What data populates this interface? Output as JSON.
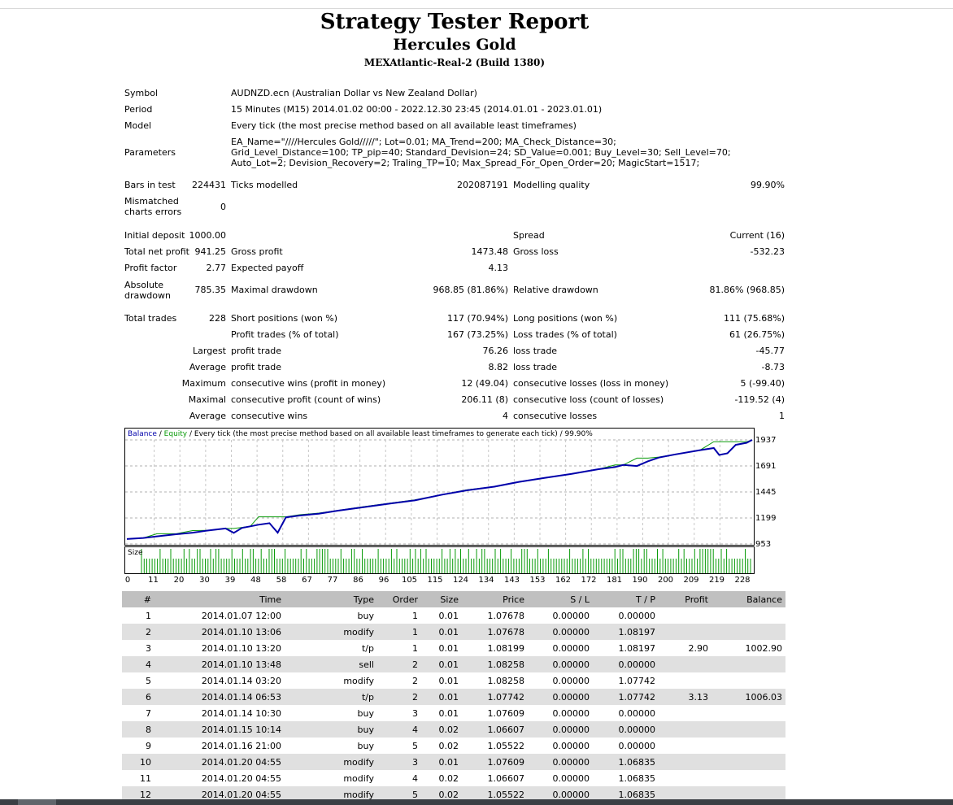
{
  "header": {
    "title": "Strategy Tester Report",
    "ea_name": "Hercules Gold",
    "server": "MEXAtlantic-Real-2 (Build 1380)"
  },
  "info": {
    "symbol_label": "Symbol",
    "symbol_value": "AUDNZD.ecn (Australian Dollar vs New Zealand Dollar)",
    "period_label": "Period",
    "period_value": "15 Minutes (M15) 2014.01.02 00:00 - 2022.12.30 23:45 (2014.01.01 - 2023.01.01)",
    "model_label": "Model",
    "model_value": "Every tick (the most precise method based on all available least timeframes)",
    "parameters_label": "Parameters",
    "parameters_value": "EA_Name=\"////Hercules Gold/////\"; Lot=0.01; MA_Trend=200; MA_Check_Distance=30; Grid_Level_Distance=100; TP_pip=40; Standard_Devision=24; SD_Value=0.001; Buy_Level=30; Sell_Level=70; Auto_Lot=2; Devision_Recovery=2; Traling_TP=10; Max_Spread_For_Open_Order=20; MagicStart=1517;"
  },
  "stats": {
    "bars_label": "Bars in test",
    "bars_value": "224431",
    "ticks_label": "Ticks modelled",
    "ticks_value": "202087191",
    "quality_label": "Modelling quality",
    "quality_value": "99.90%",
    "mismatch_label": "Mismatched charts errors",
    "mismatch_value": "0",
    "deposit_label": "Initial deposit",
    "deposit_value": "1000.00",
    "spread_label": "Spread",
    "spread_value": "Current (16)",
    "netprofit_label": "Total net profit",
    "netprofit_value": "941.25",
    "grossprofit_label": "Gross profit",
    "grossprofit_value": "1473.48",
    "grossloss_label": "Gross loss",
    "grossloss_value": "-532.23",
    "pf_label": "Profit factor",
    "pf_value": "2.77",
    "payoff_label": "Expected payoff",
    "payoff_value": "4.13",
    "absdd_label": "Absolute drawdown",
    "absdd_value": "785.35",
    "maxdd_label": "Maximal drawdown",
    "maxdd_value": "968.85 (81.86%)",
    "reldd_label": "Relative drawdown",
    "reldd_value": "81.86% (968.85)",
    "trades_label": "Total trades",
    "trades_value": "228",
    "short_label": "Short positions (won %)",
    "short_value": "117 (70.94%)",
    "long_label": "Long positions (won %)",
    "long_value": "111 (75.68%)",
    "profittrades_label": "Profit trades (% of total)",
    "profittrades_value": "167 (73.25%)",
    "losstrades_label": "Loss trades (% of total)",
    "losstrades_value": "61 (26.75%)",
    "largest_label": "Largest",
    "lp_label": "profit trade",
    "lp_value": "76.26",
    "ll_label": "loss trade",
    "ll_value": "-45.77",
    "average_label": "Average",
    "ap_label": "profit trade",
    "ap_value": "8.82",
    "al_label": "loss trade",
    "al_value": "-8.73",
    "maximum_label": "Maximum",
    "mcw_label": "consecutive wins (profit in money)",
    "mcw_value": "12 (49.04)",
    "mcl_label": "consecutive losses (loss in money)",
    "mcl_value": "5 (-99.40)",
    "maximal_label": "Maximal",
    "mcp_label": "consecutive profit (count of wins)",
    "mcp_value": "206.11 (8)",
    "mclo_label": "consecutive loss (count of losses)",
    "mclo_value": "-119.52 (4)",
    "average2_label": "Average",
    "acw_label": "consecutive wins",
    "acw_value": "4",
    "acl_label": "consecutive losses",
    "acl_value": "1"
  },
  "chart_data": {
    "type": "line",
    "legend_balance": "Balance",
    "legend_sep1": " / ",
    "legend_equity": "Equity",
    "legend_rest": " / Every tick (the most precise method based on all available least timeframes to generate each tick) / 99.90%",
    "size_label": "Size",
    "ylim": [
      953,
      1937
    ],
    "y_ticks": [
      "1937",
      "1691",
      "1445",
      "1199",
      "953"
    ],
    "x_ticks": [
      "0",
      "11",
      "20",
      "30",
      "39",
      "48",
      "58",
      "67",
      "77",
      "86",
      "96",
      "105",
      "115",
      "124",
      "134",
      "143",
      "153",
      "162",
      "172",
      "181",
      "190",
      "200",
      "209",
      "219",
      "228"
    ],
    "xlim": [
      0,
      228
    ],
    "colors": {
      "balance": "#0000aa",
      "equity": "#0a9b0a",
      "size": "#0a9b0a"
    },
    "series": [
      {
        "name": "Balance",
        "x": [
          0,
          6,
          11,
          18,
          24,
          30,
          36,
          39,
          42,
          45,
          48,
          52,
          55,
          58,
          63,
          70,
          77,
          86,
          96,
          105,
          115,
          124,
          134,
          143,
          153,
          162,
          172,
          178,
          181,
          186,
          190,
          194,
          200,
          209,
          214,
          216,
          219,
          222,
          226,
          228
        ],
        "y": [
          1000,
          1010,
          1025,
          1045,
          1060,
          1082,
          1100,
          1058,
          1105,
          1120,
          1135,
          1150,
          1060,
          1205,
          1222,
          1240,
          1268,
          1300,
          1335,
          1365,
          1420,
          1460,
          1495,
          1540,
          1580,
          1615,
          1660,
          1680,
          1700,
          1690,
          1735,
          1770,
          1800,
          1840,
          1860,
          1795,
          1810,
          1890,
          1910,
          1937
        ]
      },
      {
        "name": "Equity",
        "x": [
          0,
          6,
          11,
          18,
          24,
          30,
          36,
          39,
          42,
          45,
          48,
          52,
          55,
          58,
          63,
          70,
          77,
          86,
          96,
          105,
          115,
          124,
          134,
          143,
          153,
          162,
          172,
          178,
          181,
          186,
          190,
          194,
          200,
          209,
          214,
          216,
          219,
          222,
          226,
          228
        ],
        "y": [
          1000,
          1010,
          1050,
          1050,
          1080,
          1082,
          1100,
          1100,
          1110,
          1120,
          1210,
          1210,
          1210,
          1210,
          1230,
          1245,
          1270,
          1305,
          1340,
          1370,
          1420,
          1465,
          1495,
          1540,
          1580,
          1615,
          1660,
          1700,
          1700,
          1765,
          1765,
          1775,
          1800,
          1840,
          1920,
          1920,
          1920,
          1920,
          1920,
          1937
        ]
      }
    ],
    "size_values": [
      1,
      0.6,
      0.6,
      0.6,
      0.6,
      0.6,
      0.6,
      1,
      0.6,
      0.6,
      0.6,
      1,
      0.6,
      0.6,
      0.6,
      0.6,
      1,
      0.6,
      1,
      0.6,
      0.6,
      1,
      1,
      0.6,
      0.6,
      0.6,
      1,
      0.6,
      1,
      1,
      0.6,
      0.6,
      0.6,
      0.6,
      1,
      0.6,
      0.6,
      0.6,
      1,
      0.6,
      0.6,
      1,
      1,
      0.6,
      0.6,
      1,
      0.6,
      0.6,
      1,
      1,
      1,
      0.6,
      0.6,
      0.6,
      1,
      0.6,
      0.6,
      0.6,
      0.6,
      0.6,
      1,
      0.6,
      1,
      0.6,
      0.6,
      0.6,
      1,
      1,
      1,
      1,
      1,
      0.6,
      0.6,
      0.6,
      0.6,
      1,
      0.6,
      0.6,
      0.6,
      1,
      1,
      0.6,
      0.6,
      1,
      0.6,
      0.6,
      0.6,
      0.6,
      0.6,
      1,
      0.6,
      0.6,
      0.6,
      0.6,
      1,
      0.6,
      1,
      0.6,
      0.6,
      0.6,
      0.6,
      1,
      0.6,
      1,
      0.6,
      1,
      0.6,
      1,
      0.6,
      0.6,
      0.6,
      0.6,
      0.6,
      1,
      0.6,
      0.6,
      1,
      0.6,
      1,
      0.6,
      1,
      0.6,
      0.6,
      1,
      0.6,
      0.6,
      1,
      0.6,
      1,
      1,
      0.6,
      0.6,
      0.6,
      1,
      0.6,
      1,
      0.6,
      0.6,
      0.6,
      1,
      0.6,
      0.6,
      0.6,
      1,
      1,
      1,
      0.6,
      0.6,
      0.6,
      1,
      0.6,
      0.6,
      0.6,
      1,
      0.6,
      0.6,
      0.6,
      0.6,
      0.6,
      0.6,
      0.6,
      1,
      0.6,
      0.6,
      0.6,
      0.6,
      1,
      0.6,
      1,
      0.6,
      0.6,
      0.6,
      0.6,
      0.6,
      0.6,
      0.6,
      0.6,
      0.6,
      1,
      0.6,
      1,
      1,
      0.6,
      0.6,
      0.6,
      1,
      1,
      1,
      0.6,
      1,
      1,
      0.6,
      0.6,
      0.6,
      1,
      0.6,
      1,
      0.6,
      0.6,
      0.6,
      0.6,
      0.6,
      1,
      0.6,
      1,
      0.6,
      0.6,
      0.6,
      1,
      0.6,
      1,
      1,
      1,
      1,
      1,
      1,
      0.6,
      0.6,
      1,
      0.6,
      1,
      0.6,
      0.6,
      0.6,
      0.6,
      0.6,
      0.6,
      1,
      0.6,
      0.6
    ]
  },
  "table": {
    "columns": [
      "#",
      "Time",
      "Type",
      "Order",
      "Size",
      "Price",
      "S / L",
      "T / P",
      "Profit",
      "Balance"
    ],
    "rows": [
      [
        "1",
        "2014.01.07 12:00",
        "buy",
        "1",
        "0.01",
        "1.07678",
        "0.00000",
        "0.00000",
        "",
        ""
      ],
      [
        "2",
        "2014.01.10 13:06",
        "modify",
        "1",
        "0.01",
        "1.07678",
        "0.00000",
        "1.08197",
        "",
        ""
      ],
      [
        "3",
        "2014.01.10 13:20",
        "t/p",
        "1",
        "0.01",
        "1.08199",
        "0.00000",
        "1.08197",
        "2.90",
        "1002.90"
      ],
      [
        "4",
        "2014.01.10 13:48",
        "sell",
        "2",
        "0.01",
        "1.08258",
        "0.00000",
        "0.00000",
        "",
        ""
      ],
      [
        "5",
        "2014.01.14 03:20",
        "modify",
        "2",
        "0.01",
        "1.08258",
        "0.00000",
        "1.07742",
        "",
        ""
      ],
      [
        "6",
        "2014.01.14 06:53",
        "t/p",
        "2",
        "0.01",
        "1.07742",
        "0.00000",
        "1.07742",
        "3.13",
        "1006.03"
      ],
      [
        "7",
        "2014.01.14 10:30",
        "buy",
        "3",
        "0.01",
        "1.07609",
        "0.00000",
        "0.00000",
        "",
        ""
      ],
      [
        "8",
        "2014.01.15 10:14",
        "buy",
        "4",
        "0.02",
        "1.06607",
        "0.00000",
        "0.00000",
        "",
        ""
      ],
      [
        "9",
        "2014.01.16 21:00",
        "buy",
        "5",
        "0.02",
        "1.05522",
        "0.00000",
        "0.00000",
        "",
        ""
      ],
      [
        "10",
        "2014.01.20 04:55",
        "modify",
        "3",
        "0.01",
        "1.07609",
        "0.00000",
        "1.06835",
        "",
        ""
      ],
      [
        "11",
        "2014.01.20 04:55",
        "modify",
        "4",
        "0.02",
        "1.06607",
        "0.00000",
        "1.06835",
        "",
        ""
      ],
      [
        "12",
        "2014.01.20 04:55",
        "modify",
        "5",
        "0.02",
        "1.05522",
        "0.00000",
        "1.06835",
        "",
        ""
      ]
    ]
  }
}
